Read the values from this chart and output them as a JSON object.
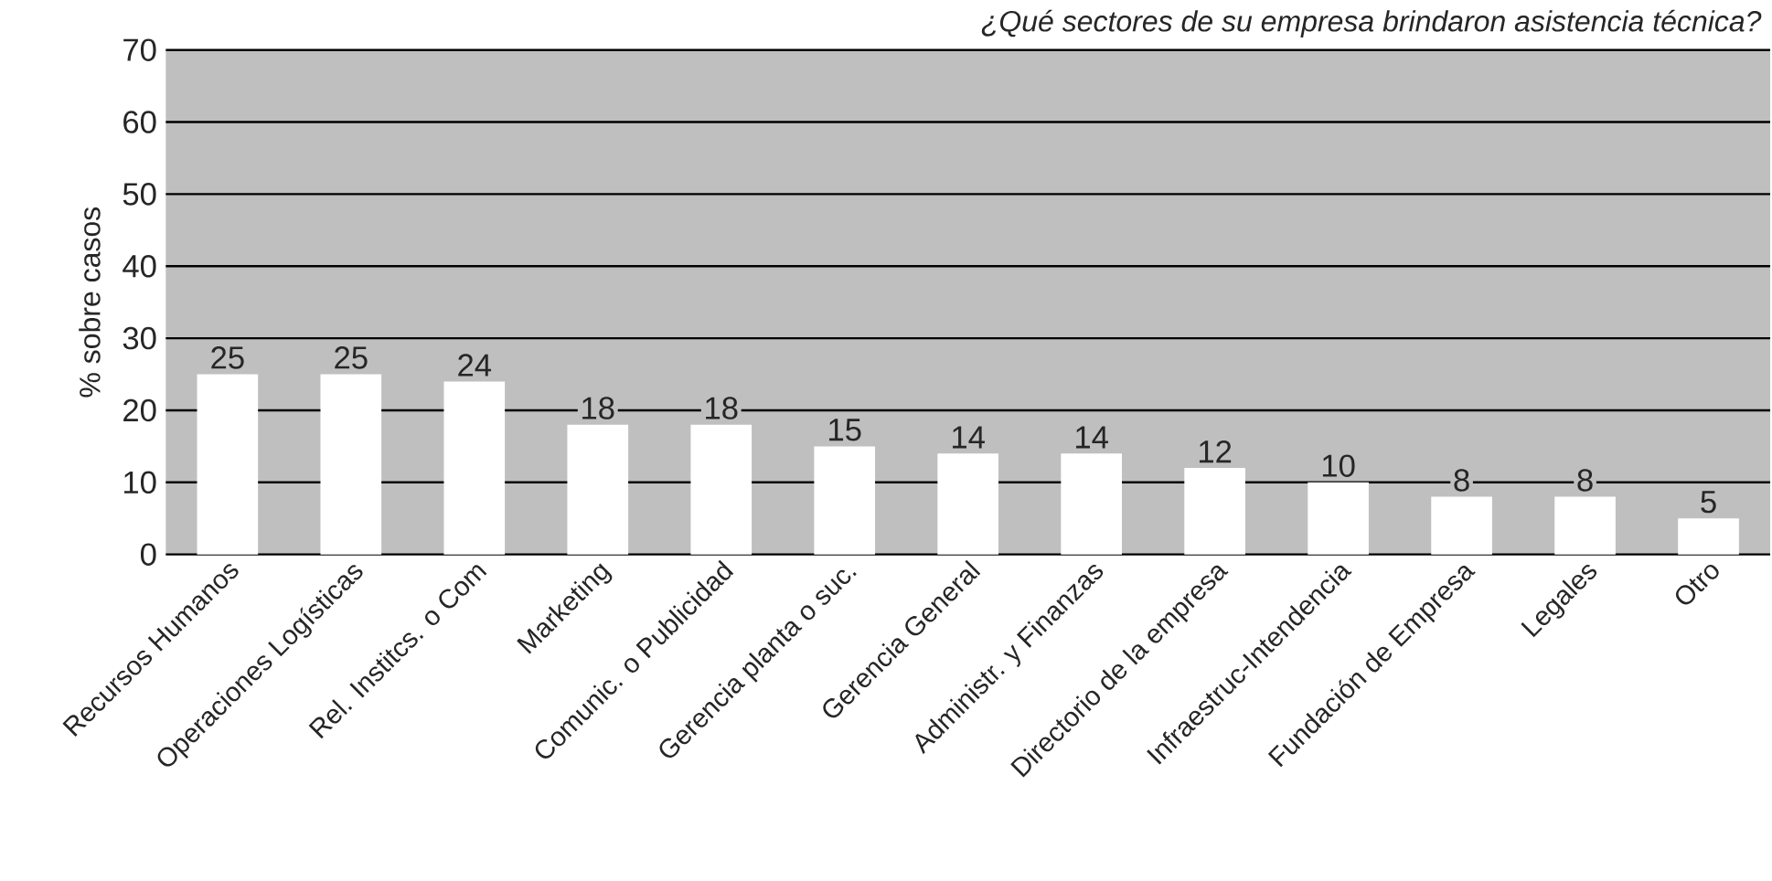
{
  "chart_data": {
    "type": "bar",
    "title": "¿Qué sectores de su empresa brindaron asistencia técnica?",
    "ylabel": "% sobre casos",
    "categories": [
      "Recursos Humanos",
      "Operaciones Logísticas",
      "Rel. Institcs. o Com",
      "Marketing",
      "Comunic. o Publicidad",
      "Gerencia planta o suc.",
      "Gerencia General",
      "Administr. y Finanzas",
      "Directorio de la empresa",
      "Infraestruc-Intendencia",
      "Fundación de Empresa",
      "Legales",
      "Otro"
    ],
    "values": [
      25,
      25,
      24,
      18,
      18,
      15,
      14,
      14,
      12,
      10,
      8,
      8,
      5
    ],
    "color": "#ffffff",
    "ylim": [
      0,
      70
    ],
    "yticks": [
      0,
      10,
      20,
      30,
      40,
      50,
      60,
      70
    ],
    "grid": "y",
    "data_labels": true
  }
}
